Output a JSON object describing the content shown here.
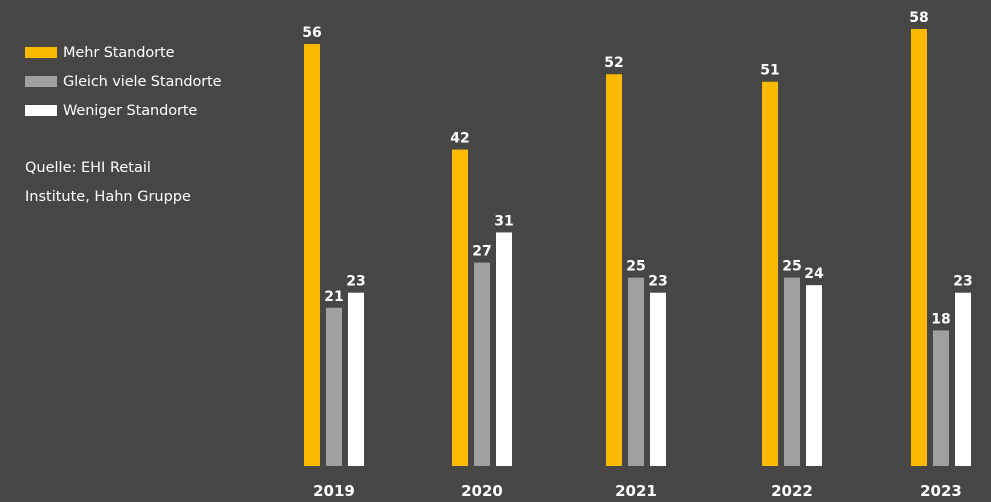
{
  "chart_data": {
    "type": "bar",
    "categories": [
      "2019",
      "2020",
      "2021",
      "2022",
      "2023"
    ],
    "series": [
      {
        "name": "Mehr Standorte",
        "color": "#fbb900",
        "values": [
          56,
          42,
          52,
          51,
          58
        ]
      },
      {
        "name": "Gleich viele Standorte",
        "color": "#a0a09f",
        "values": [
          21,
          27,
          25,
          25,
          18
        ]
      },
      {
        "name": "Weniger Standorte",
        "color": "#ffffff",
        "values": [
          23,
          31,
          23,
          24,
          23
        ]
      }
    ],
    "ylim": [
      0,
      58
    ],
    "legend_position": "top-left",
    "grid": false
  },
  "source": {
    "line1": "Quelle: EHI Retail",
    "line2": "Institute, Hahn Gruppe"
  },
  "colors": {
    "background": "#474644",
    "text": "#ffffff"
  }
}
